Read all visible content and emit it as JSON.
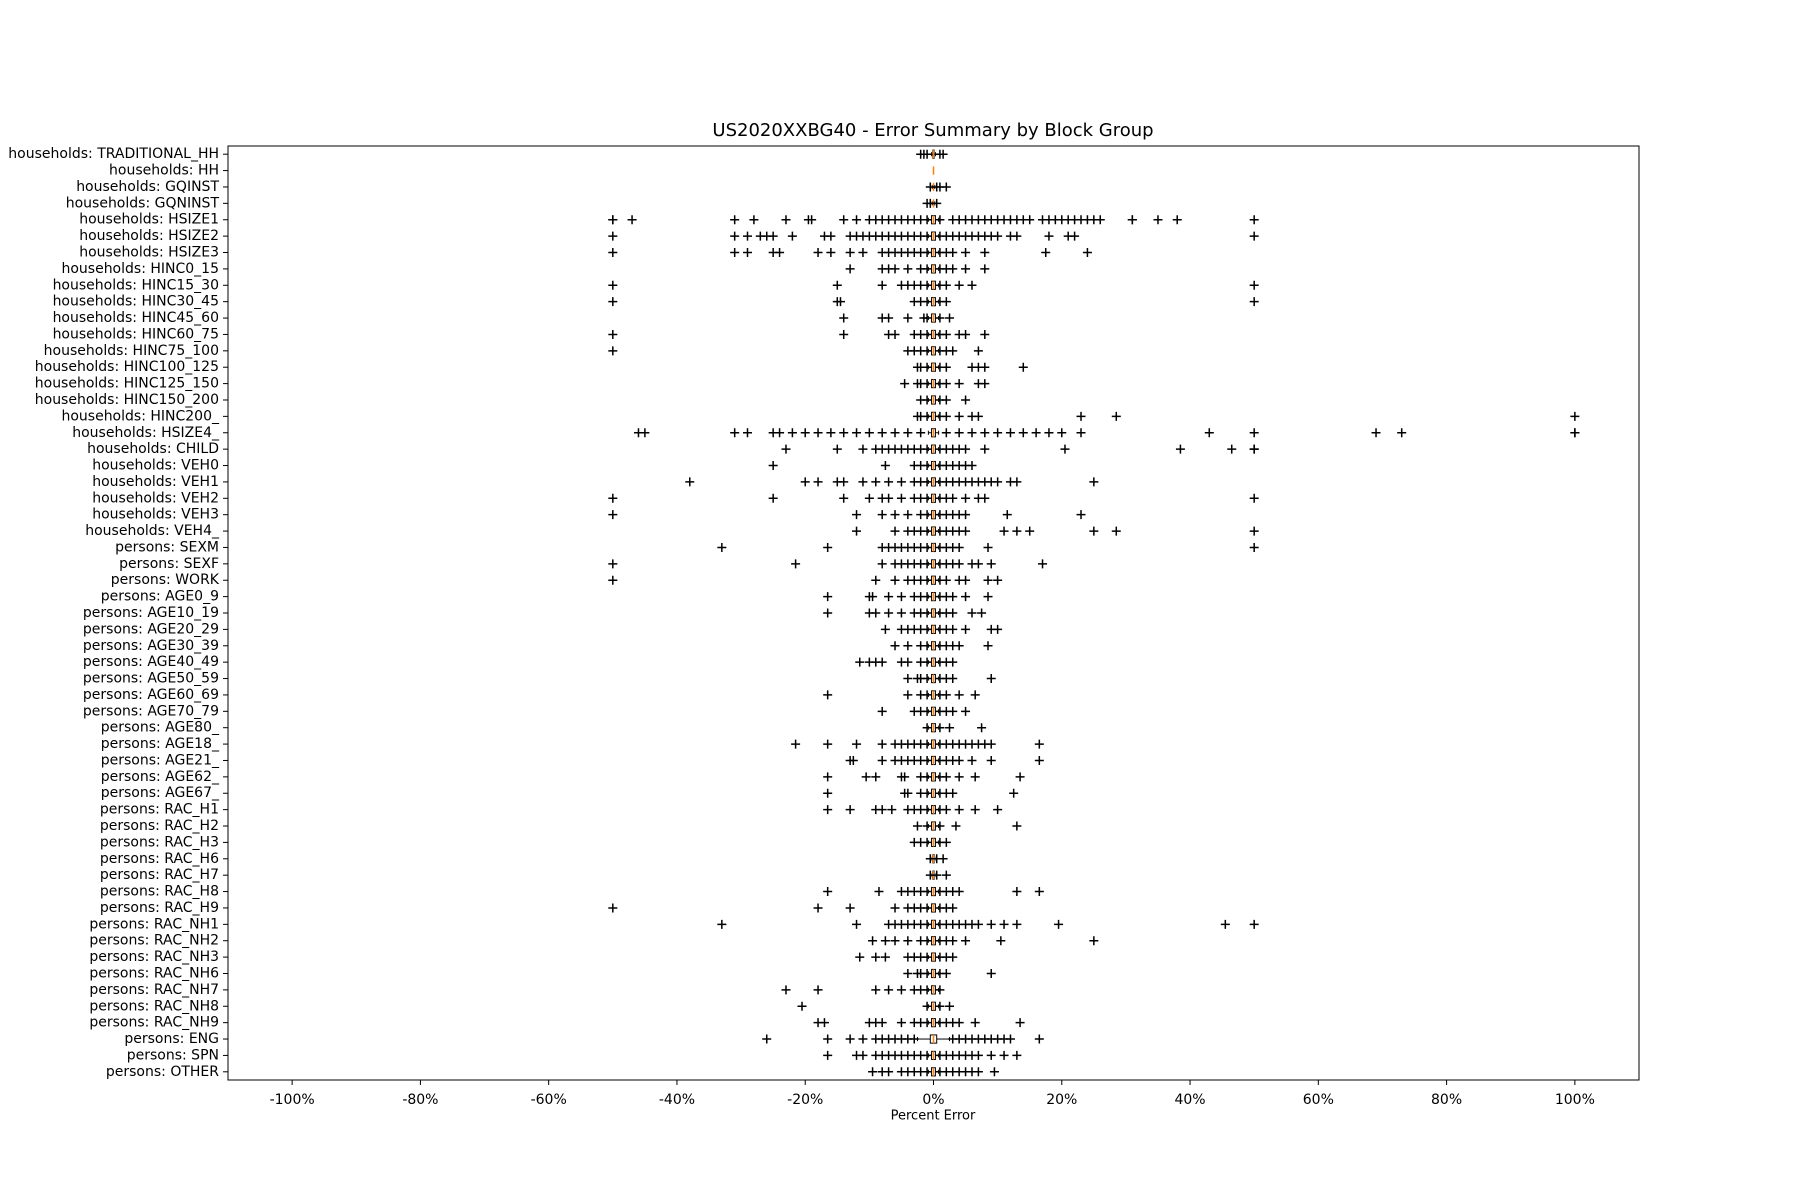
{
  "chart_data": {
    "type": "boxplot",
    "orientation": "horizontal",
    "title": "US2020XXBG40 - Error Summary by Block Group",
    "x_label": "Percent Error",
    "xlim": [
      -110,
      110
    ],
    "xticks": [
      {
        "value": -100,
        "label": "-100%"
      },
      {
        "value": -80,
        "label": "-80%"
      },
      {
        "value": -60,
        "label": "-60%"
      },
      {
        "value": -40,
        "label": "-40%"
      },
      {
        "value": -20,
        "label": "-20%"
      },
      {
        "value": 0,
        "label": "0%"
      },
      {
        "value": 20,
        "label": "20%"
      },
      {
        "value": 40,
        "label": "40%"
      },
      {
        "value": 60,
        "label": "60%"
      },
      {
        "value": 80,
        "label": "80%"
      },
      {
        "value": 100,
        "label": "100%"
      }
    ],
    "box_color": "#000000",
    "median_color": "#ff7f0e",
    "categories": [
      "households: TRADITIONAL_HH",
      "households: HH",
      "households: GQINST",
      "households: GQNINST",
      "households: HSIZE1",
      "households: HSIZE2",
      "households: HSIZE3",
      "households: HINC0_15",
      "households: HINC15_30",
      "households: HINC30_45",
      "households: HINC45_60",
      "households: HINC60_75",
      "households: HINC75_100",
      "households: HINC100_125",
      "households: HINC125_150",
      "households: HINC150_200",
      "households: HINC200_",
      "households: HSIZE4_",
      "households: CHILD",
      "households: VEH0",
      "households: VEH1",
      "households: VEH2",
      "households: VEH3",
      "households: VEH4_",
      "persons: SEXM",
      "persons: SEXF",
      "persons: WORK",
      "persons: AGE0_9",
      "persons: AGE10_19",
      "persons: AGE20_29",
      "persons: AGE30_39",
      "persons: AGE40_49",
      "persons: AGE50_59",
      "persons: AGE60_69",
      "persons: AGE70_79",
      "persons: AGE80_",
      "persons: AGE18_",
      "persons: AGE21_",
      "persons: AGE62_",
      "persons: AGE67_",
      "persons: RAC_H1",
      "persons: RAC_H2",
      "persons: RAC_H3",
      "persons: RAC_H6",
      "persons: RAC_H7",
      "persons: RAC_H8",
      "persons: RAC_H9",
      "persons: RAC_NH1",
      "persons: RAC_NH2",
      "persons: RAC_NH3",
      "persons: RAC_NH6",
      "persons: RAC_NH7",
      "persons: RAC_NH8",
      "persons: RAC_NH9",
      "persons: ENG",
      "persons: SPN",
      "persons: OTHER"
    ],
    "boxes": [
      [
        -0.3,
        -0.1,
        0,
        0.1,
        0.3
      ],
      [
        0,
        0,
        0,
        0,
        0
      ],
      [
        -0.2,
        0,
        0,
        0,
        0.2
      ],
      [
        -0.2,
        0,
        0,
        0,
        0.2
      ],
      [
        -0.8,
        -0.3,
        0,
        0.3,
        0.8
      ],
      [
        -0.8,
        -0.3,
        0,
        0.3,
        0.8
      ],
      [
        -0.8,
        -0.3,
        0,
        0.3,
        0.8
      ],
      [
        -0.8,
        -0.3,
        0,
        0.3,
        0.8
      ],
      [
        -0.8,
        -0.3,
        0,
        0.3,
        0.8
      ],
      [
        -0.8,
        -0.3,
        0,
        0.3,
        0.8
      ],
      [
        -0.8,
        -0.3,
        0,
        0.3,
        0.8
      ],
      [
        -0.8,
        -0.3,
        0,
        0.3,
        0.8
      ],
      [
        -0.8,
        -0.3,
        0,
        0.3,
        0.8
      ],
      [
        -0.8,
        -0.3,
        0,
        0.3,
        0.8
      ],
      [
        -0.8,
        -0.3,
        0,
        0.3,
        0.8
      ],
      [
        -0.8,
        -0.3,
        0,
        0.3,
        0.8
      ],
      [
        -0.8,
        -0.3,
        0,
        0.3,
        0.8
      ],
      [
        -0.8,
        -0.3,
        0,
        0.3,
        0.8
      ],
      [
        -0.8,
        -0.3,
        0,
        0.3,
        0.8
      ],
      [
        -0.8,
        -0.3,
        0,
        0.3,
        0.8
      ],
      [
        -0.8,
        -0.3,
        0,
        0.3,
        0.8
      ],
      [
        -0.8,
        -0.3,
        0,
        0.3,
        0.8
      ],
      [
        -0.8,
        -0.3,
        0,
        0.3,
        0.8
      ],
      [
        -0.8,
        -0.3,
        0,
        0.3,
        0.8
      ],
      [
        -0.8,
        -0.3,
        0,
        0.3,
        0.8
      ],
      [
        -0.8,
        -0.3,
        0,
        0.3,
        0.8
      ],
      [
        -0.8,
        -0.3,
        0,
        0.3,
        0.8
      ],
      [
        -0.8,
        -0.3,
        0,
        0.3,
        0.8
      ],
      [
        -0.8,
        -0.3,
        0,
        0.3,
        0.8
      ],
      [
        -0.8,
        -0.3,
        0,
        0.3,
        0.8
      ],
      [
        -0.8,
        -0.3,
        0,
        0.3,
        0.8
      ],
      [
        -0.8,
        -0.3,
        0,
        0.3,
        0.8
      ],
      [
        -0.8,
        -0.3,
        0,
        0.3,
        0.8
      ],
      [
        -0.8,
        -0.3,
        0,
        0.3,
        0.8
      ],
      [
        -0.8,
        -0.3,
        0,
        0.3,
        0.8
      ],
      [
        -0.8,
        -0.3,
        0,
        0.3,
        0.8
      ],
      [
        -0.8,
        -0.3,
        0,
        0.3,
        0.8
      ],
      [
        -0.8,
        -0.3,
        0,
        0.3,
        0.8
      ],
      [
        -0.8,
        -0.3,
        0,
        0.3,
        0.8
      ],
      [
        -0.8,
        -0.3,
        0,
        0.3,
        0.8
      ],
      [
        -0.8,
        -0.3,
        0,
        0.3,
        0.8
      ],
      [
        -0.8,
        -0.3,
        0,
        0.3,
        0.8
      ],
      [
        -0.8,
        -0.3,
        0,
        0.3,
        0.8
      ],
      [
        -0.4,
        -0.1,
        0,
        0.1,
        0.4
      ],
      [
        -0.4,
        -0.1,
        0,
        0.1,
        0.4
      ],
      [
        -0.8,
        -0.3,
        0,
        0.3,
        0.8
      ],
      [
        -0.8,
        -0.3,
        0,
        0.3,
        0.8
      ],
      [
        -0.8,
        -0.3,
        0,
        0.3,
        0.8
      ],
      [
        -0.8,
        -0.3,
        0,
        0.3,
        0.8
      ],
      [
        -0.8,
        -0.3,
        0,
        0.3,
        0.8
      ],
      [
        -0.8,
        -0.3,
        0,
        0.3,
        0.8
      ],
      [
        -0.8,
        -0.3,
        0,
        0.3,
        0.8
      ],
      [
        -0.8,
        -0.3,
        0,
        0.3,
        0.8
      ],
      [
        -0.8,
        -0.3,
        0,
        0.3,
        0.8
      ],
      [
        -2.5,
        -0.5,
        0,
        0.5,
        2.5
      ],
      [
        -0.8,
        -0.3,
        0,
        0.3,
        0.8
      ],
      [
        -0.8,
        -0.3,
        0,
        0.3,
        0.8
      ]
    ],
    "fliers": [
      [
        -2,
        -1.5,
        -1,
        1,
        1.5
      ],
      [],
      [
        -0.5,
        0.5,
        1,
        2
      ],
      [
        -1,
        -0.5,
        0.5
      ],
      [
        -50,
        -50,
        -47,
        -31,
        -28,
        -23,
        -19.5,
        -19,
        -14,
        -12,
        -10,
        -9,
        -8,
        -7,
        -6,
        -5,
        -4,
        -3,
        -2,
        -1,
        1,
        3,
        4,
        5,
        6,
        7,
        8,
        9,
        10,
        11,
        12,
        13,
        14,
        15,
        17,
        18,
        19,
        20,
        21,
        22,
        23,
        24,
        25,
        26,
        31,
        31,
        35,
        38,
        50
      ],
      [
        -50,
        -31,
        -29,
        -27,
        -26,
        -25,
        -22,
        -17,
        -16,
        -13,
        -12,
        -11,
        -10,
        -9,
        -8,
        -7,
        -6,
        -5,
        -4,
        -3,
        -2,
        -1,
        1,
        2,
        3,
        4,
        5,
        6,
        7,
        8,
        9,
        10,
        12,
        13,
        18,
        21,
        22,
        50
      ],
      [
        -50,
        -31,
        -29,
        -25,
        -24,
        -18,
        -16,
        -13,
        -11,
        -8,
        -7,
        -6,
        -5,
        -4,
        -3,
        -2,
        -1,
        1,
        2,
        3,
        5,
        8,
        17.5,
        24
      ],
      [
        -13,
        -8,
        -7,
        -6,
        -4,
        -2,
        -1,
        1,
        2,
        3,
        5,
        8
      ],
      [
        -50,
        -15,
        -8,
        -5,
        -4,
        -3,
        -2,
        -1,
        1,
        2,
        4,
        6,
        50
      ],
      [
        -50,
        -15,
        -14.5,
        -3,
        -2,
        -1,
        1,
        2,
        50
      ],
      [
        -14,
        -8,
        -7,
        -4,
        -1.5,
        -1,
        1,
        2.5
      ],
      [
        -50,
        -14,
        -7,
        -6,
        -3,
        -2,
        -1,
        1,
        2,
        4,
        5,
        8
      ],
      [
        -50,
        -4,
        -3,
        -2,
        -1,
        1,
        2,
        3,
        7
      ],
      [
        -2.5,
        -2,
        -1,
        1,
        2,
        6,
        7,
        8,
        14
      ],
      [
        -4.5,
        -2.5,
        -2,
        -1,
        1,
        2,
        4,
        7,
        8
      ],
      [
        -2,
        -1,
        1,
        2,
        5
      ],
      [
        -2.5,
        -2,
        -1,
        1,
        2,
        4,
        6,
        7,
        23,
        28.5,
        100
      ],
      [
        -46,
        -45,
        -31,
        -29,
        -25,
        -24,
        -22,
        -20,
        -18,
        -16,
        -14,
        -12,
        -10,
        -8,
        -6,
        -4,
        -2,
        2,
        4,
        6,
        8,
        10,
        12,
        14,
        16,
        18,
        20,
        23,
        43,
        50,
        69,
        73,
        100,
        100
      ],
      [
        -23,
        -15,
        -11,
        -9,
        -8,
        -7,
        -6,
        -5,
        -4,
        -3,
        -2,
        -1,
        1,
        2,
        3,
        4,
        5,
        8,
        20.5,
        38.5,
        46.5,
        50,
        50
      ],
      [
        -25,
        -7.5,
        -3,
        -2,
        -1,
        1,
        2,
        3,
        4,
        5,
        6
      ],
      [
        -38,
        -20,
        -18,
        -15,
        -14,
        -11,
        -9,
        -7,
        -5,
        -3,
        -2,
        -1,
        1,
        2,
        3,
        4,
        5,
        6,
        7,
        8,
        9,
        10,
        12,
        13,
        25
      ],
      [
        -50,
        -25,
        -14,
        -10,
        -8,
        -7,
        -5,
        -3,
        -2,
        -1,
        1,
        2,
        3,
        5,
        7,
        8,
        50
      ],
      [
        -50,
        -12,
        -8,
        -6,
        -4,
        -2,
        -1,
        1,
        2,
        3,
        4,
        5,
        11.5,
        23
      ],
      [
        -12,
        -6,
        -4,
        -3,
        -2,
        -1,
        1,
        2,
        3,
        4,
        5,
        11,
        13,
        15,
        25,
        28.5,
        50
      ],
      [
        -33,
        -16.5,
        -8,
        -7,
        -6,
        -5,
        -4,
        -3,
        -2,
        -1,
        1,
        2,
        3,
        4,
        8.5,
        50
      ],
      [
        -50,
        -21.5,
        -8,
        -6,
        -5,
        -4,
        -3,
        -2,
        -1,
        1,
        2,
        3,
        4,
        6,
        7,
        9,
        17
      ],
      [
        -50,
        -9,
        -6,
        -4,
        -3,
        -2,
        -1,
        1,
        2,
        4,
        5,
        8.5,
        10
      ],
      [
        -16.5,
        -10,
        -9.5,
        -7,
        -5,
        -3,
        -2,
        -1,
        1,
        2,
        3,
        5,
        8.5
      ],
      [
        -16.5,
        -10,
        -9,
        -7,
        -5,
        -3,
        -2,
        -1,
        1,
        2,
        3,
        6,
        7.5
      ],
      [
        -7.5,
        -5,
        -4,
        -3,
        -2,
        -1,
        1,
        2,
        3,
        5,
        9,
        10
      ],
      [
        -6,
        -4,
        -2,
        -1,
        1,
        2,
        3,
        4,
        8.5
      ],
      [
        -11.5,
        -10,
        -9,
        -8,
        -5,
        -4,
        -2,
        -1,
        1,
        2,
        3
      ],
      [
        -4,
        -2.5,
        -2,
        -1,
        1,
        2,
        3,
        9
      ],
      [
        -16.5,
        -4,
        -2,
        -1,
        1,
        2,
        4,
        6.5
      ],
      [
        -8,
        -3,
        -2,
        -1,
        1,
        2,
        3,
        5
      ],
      [
        -1,
        1,
        2.5,
        7.5
      ],
      [
        -21.5,
        -16.5,
        -12,
        -8,
        -6,
        -5,
        -4,
        -3,
        -2,
        -1,
        1,
        2,
        3,
        4,
        5,
        6,
        7,
        8,
        9,
        16.5
      ],
      [
        -13,
        -12.5,
        -8,
        -6,
        -5,
        -4,
        -3,
        -2,
        -1,
        1,
        2,
        3,
        4,
        6,
        9,
        16.5
      ],
      [
        -16.5,
        -10.5,
        -9,
        -5,
        -4.5,
        -2,
        -1,
        1,
        2,
        4,
        6.5,
        13.5
      ],
      [
        -16.5,
        -4.5,
        -4,
        -2,
        -1,
        1,
        2,
        3,
        12.5
      ],
      [
        -16.5,
        -13,
        -9,
        -8,
        -6.5,
        -4,
        -3,
        -2,
        -1,
        1,
        2,
        4,
        6.5,
        10
      ],
      [
        -2.5,
        -1,
        1,
        3.5,
        13
      ],
      [
        -3,
        -2,
        -1,
        1,
        2
      ],
      [
        -0.5,
        0.5,
        1.5
      ],
      [
        -0.5,
        0.5,
        2
      ],
      [
        -16.5,
        -8.5,
        -5,
        -4,
        -3,
        -2,
        -1,
        1,
        2,
        3,
        4,
        13,
        16.5
      ],
      [
        -50,
        -18,
        -13,
        -6,
        -4,
        -3,
        -2,
        -1,
        1,
        2,
        3
      ],
      [
        -33,
        -12,
        -7,
        -6,
        -5,
        -4,
        -3,
        -2,
        -1,
        1,
        2,
        3,
        4,
        5,
        6,
        7,
        9,
        11,
        13,
        19.5,
        45.5,
        50
      ],
      [
        -9.5,
        -7.5,
        -6,
        -4,
        -2,
        -1,
        1,
        2,
        3,
        5,
        10.5,
        25
      ],
      [
        -11.5,
        -9,
        -7.5,
        -4,
        -3,
        -2,
        -1,
        1,
        2,
        3
      ],
      [
        -4,
        -2.5,
        -2,
        -1,
        1,
        2,
        9
      ],
      [
        -23,
        -18,
        -9,
        -7,
        -5,
        -3,
        -2,
        -1,
        1
      ],
      [
        -20.5,
        -1,
        1,
        2.5
      ],
      [
        -18,
        -17,
        -10,
        -9,
        -8,
        -5,
        -3,
        -2,
        -1,
        1,
        2,
        3,
        4,
        6.5,
        13.5
      ],
      [
        -26,
        -16.5,
        -13,
        -11,
        -9,
        -8,
        -7,
        -6,
        -5,
        -4,
        -3,
        3,
        4,
        5,
        6,
        7,
        8,
        9,
        10,
        11,
        12,
        16.5
      ],
      [
        -16.5,
        -12,
        -11,
        -9,
        -8,
        -7,
        -6,
        -5,
        -4,
        -3,
        -2,
        -1,
        1,
        2,
        3,
        4,
        5,
        6,
        7,
        9,
        11,
        13
      ],
      [
        -9.5,
        -8,
        -7,
        -5,
        -4,
        -3,
        -2,
        -1,
        1,
        2,
        3,
        4,
        5,
        6,
        7,
        9.5
      ]
    ]
  }
}
